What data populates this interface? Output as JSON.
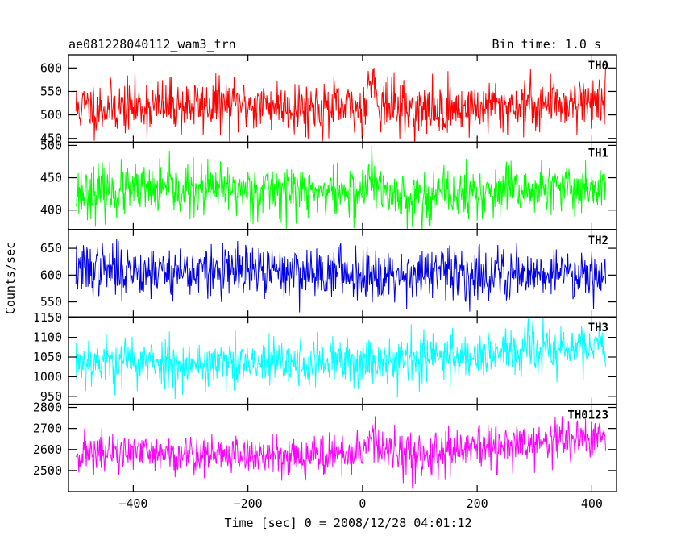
{
  "header": {
    "left_title": "ae081228040112_wam3_trn",
    "right_title": "Bin time: 1.0 s"
  },
  "chart_data": {
    "type": "line",
    "xlabel": "Time [sec] 0 = 2008/12/28 04:01:12",
    "ylabel": "Counts/sec",
    "xlim": [
      -513,
      443
    ],
    "x_ticks": [
      -400,
      -200,
      0,
      200,
      400
    ],
    "x_tick_labels": [
      "−400",
      "−200",
      "0",
      "200",
      "400"
    ],
    "data_range": [
      -500,
      424
    ],
    "bin_time": 1.0,
    "panels": [
      {
        "name": "TH0",
        "color": "#ff0000",
        "ylim": [
          442,
          628
        ],
        "y_ticks": [
          450,
          500,
          550,
          600
        ],
        "y_tick_labels": [
          "450",
          "500",
          "550",
          "600"
        ],
        "baseline": [
          [
            -500,
            515
          ],
          [
            -200,
            522
          ],
          [
            0,
            512
          ],
          [
            15,
            585
          ],
          [
            30,
            525
          ],
          [
            100,
            508
          ],
          [
            300,
            524
          ],
          [
            424,
            534
          ]
        ],
        "noise": 28,
        "seed": 11
      },
      {
        "name": "TH1",
        "color": "#00ff00",
        "ylim": [
          370,
          505
        ],
        "y_ticks": [
          400,
          450,
          500
        ],
        "y_tick_labels": [
          "400",
          "450",
          "500"
        ],
        "baseline": [
          [
            -500,
            428
          ],
          [
            -200,
            432
          ],
          [
            0,
            427
          ],
          [
            15,
            453
          ],
          [
            30,
            428
          ],
          [
            100,
            420
          ],
          [
            300,
            430
          ],
          [
            424,
            437
          ]
        ],
        "noise": 20,
        "seed": 23
      },
      {
        "name": "TH2",
        "color": "#0000e6",
        "ylim": [
          522,
          685
        ],
        "y_ticks": [
          550,
          600,
          650
        ],
        "y_tick_labels": [
          "550",
          "600",
          "650"
        ],
        "baseline": [
          [
            -500,
            610
          ],
          [
            -200,
            606
          ],
          [
            0,
            604
          ],
          [
            200,
            602
          ],
          [
            424,
            607
          ]
        ],
        "noise": 24,
        "seed": 37
      },
      {
        "name": "TH3",
        "color": "#00ffff",
        "ylim": [
          930,
          1152
        ],
        "y_ticks": [
          950,
          1000,
          1050,
          1100,
          1150
        ],
        "y_tick_labels": [
          "950",
          "1000",
          "1050",
          "1100",
          "1150"
        ],
        "baseline": [
          [
            -500,
            1040
          ],
          [
            -200,
            1030
          ],
          [
            0,
            1038
          ],
          [
            200,
            1055
          ],
          [
            424,
            1078
          ]
        ],
        "noise": 32,
        "seed": 53
      },
      {
        "name": "TH0123",
        "color": "#ff00ff",
        "ylim": [
          2400,
          2815
        ],
        "y_ticks": [
          2500,
          2600,
          2700,
          2800
        ],
        "y_tick_labels": [
          "2500",
          "2600",
          "2700",
          "2800"
        ],
        "baseline": [
          [
            -500,
            2585
          ],
          [
            -200,
            2572
          ],
          [
            0,
            2575
          ],
          [
            15,
            2700
          ],
          [
            30,
            2590
          ],
          [
            100,
            2568
          ],
          [
            300,
            2630
          ],
          [
            424,
            2660
          ]
        ],
        "noise": 50,
        "seed": 71
      }
    ]
  }
}
